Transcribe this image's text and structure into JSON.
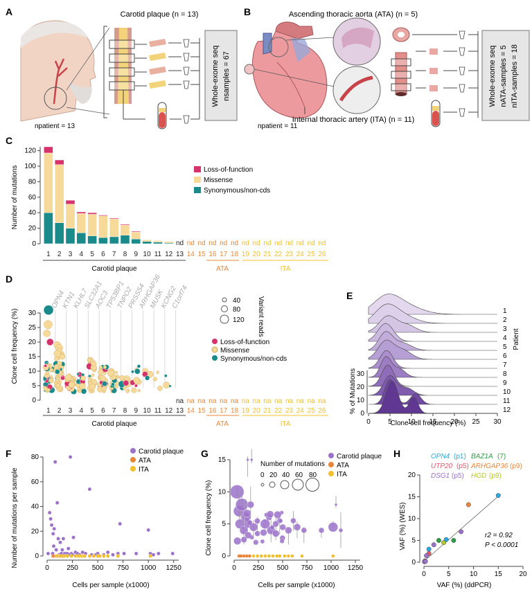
{
  "colors": {
    "lof": "#d6336c",
    "mis": "#f7d99a",
    "syn": "#1a8a8a",
    "carotid": "#9b72c9",
    "ata": "#e8873a",
    "ita": "#f0c02f",
    "grey": "#aaaaaa",
    "orange": "#e8873a",
    "yellow": "#f0c02f"
  },
  "panelA": {
    "label": "A",
    "title": "Carotid plaque (n = 13)",
    "npatient": "npatient = 13",
    "box_l1": "Whole-exome seq",
    "box_l2": "nsamples = 67"
  },
  "panelB": {
    "label": "B",
    "title": "Ascending thoracic aorta (ATA) (n = 5)",
    "subtitle": "Internal thoracic artery (ITA) (n = 11)",
    "npatient": "npatient = 11",
    "box_l1": "Whole-exome seq",
    "box_l2": "nATA-samples = 5",
    "box_l3": "nITA-samples = 18"
  },
  "panelC": {
    "label": "C",
    "ylabel": "Number of mutations",
    "legend": [
      "Loss-of-function",
      "Missense",
      "Synonymous/non-cds"
    ],
    "groups": [
      "Carotid plaque",
      "ATA",
      "ITA"
    ],
    "nd": "nd"
  },
  "panelD": {
    "label": "D",
    "ylabel": "Clone cell frequency (%)",
    "genes": [
      "OPN4",
      "KTN1",
      "KLHL7",
      "SLC32A1",
      "AOC3",
      "TP53BP1",
      "TNPO2",
      "PRSS54",
      "ARHGAP36",
      "MUSK",
      "KCNG2",
      "C1orf74"
    ],
    "size_title": "Variant reads",
    "size_vals": [
      "40",
      "80",
      "120"
    ],
    "legend": [
      "Loss-of-function",
      "Missense",
      "Synonymous/non-cds"
    ],
    "na": "na",
    "groups": [
      "Carotid plaque",
      "ATA",
      "ITA"
    ]
  },
  "panelE": {
    "label": "E",
    "xlabel": "Clone cell frequency (%)",
    "ylabel": "% of Mutations",
    "side": "Patient",
    "patients": [
      "1",
      "2",
      "3",
      "4",
      "5",
      "6",
      "7",
      "8",
      "9",
      "10",
      "11",
      "12"
    ],
    "yticks": [
      "0",
      "10",
      "20",
      "30"
    ],
    "xticks": [
      "0",
      "5",
      "10",
      "15",
      "20",
      "25",
      "30"
    ]
  },
  "panelF": {
    "label": "F",
    "ylabel": "Number of mutations per sample",
    "xlabel": "Cells per sample (x1000)",
    "legend": [
      "Carotid plaque",
      "ATA",
      "ITA"
    ]
  },
  "panelG": {
    "label": "G",
    "ylabel": "Clone cell frequency (%)",
    "xlabel": "Cells per sample (x1000)",
    "size_title": "Number of mutations",
    "size_vals": [
      "0",
      "20",
      "40",
      "60",
      "80"
    ],
    "legend": [
      "Carotid plaque",
      "ATA",
      "ITA"
    ]
  },
  "panelH": {
    "label": "H",
    "ylabel": "VAF (%) (WES)",
    "xlabel": "VAF (%) (ddPCR)",
    "stat1": "r2 = 0.92",
    "stat2": "P < 0.0001",
    "legend": [
      {
        "gene": "OPN4",
        "p": "(p1)",
        "color": "#29a9e0"
      },
      {
        "gene": "BAZ1A",
        "p": "(7)",
        "color": "#2e9e44"
      },
      {
        "gene": "UTP20",
        "p": "(p5)",
        "color": "#e05a6a"
      },
      {
        "gene": "ARHGAP36",
        "p": "(p9)",
        "color": "#e8873a"
      },
      {
        "gene": "DSG1",
        "p": "(p5)",
        "color": "#9b72c9"
      },
      {
        "gene": "HGD",
        "p": "(p9)",
        "color": "#b5c42b"
      }
    ]
  },
  "chart_data": [
    {
      "panel": "C",
      "type": "bar",
      "stacked": true,
      "categories": [
        "1",
        "2",
        "3",
        "4",
        "5",
        "6",
        "7",
        "8",
        "9",
        "10",
        "11",
        "12",
        "13",
        "14",
        "15",
        "16",
        "17",
        "18",
        "19",
        "20",
        "21",
        "22",
        "23",
        "24",
        "25",
        "26"
      ],
      "series": [
        {
          "name": "Synonymous/non-cds",
          "values": [
            40,
            27,
            20,
            14,
            10,
            8,
            9,
            11,
            6,
            3,
            2,
            1,
            null,
            null,
            null,
            null,
            null,
            null,
            null,
            null,
            null,
            null,
            null,
            null,
            null,
            null
          ]
        },
        {
          "name": "Missense",
          "values": [
            77,
            75,
            31,
            25,
            28,
            28,
            23,
            13,
            9,
            2,
            2,
            2,
            null,
            null,
            null,
            null,
            null,
            null,
            null,
            null,
            null,
            null,
            null,
            null,
            null,
            null
          ]
        },
        {
          "name": "Loss-of-function",
          "values": [
            8,
            6,
            5,
            2,
            2,
            1,
            1,
            1,
            1,
            0,
            0,
            0,
            null,
            null,
            null,
            null,
            null,
            null,
            null,
            null,
            null,
            null,
            null,
            null,
            null,
            null
          ]
        }
      ],
      "ylim": [
        0,
        125
      ],
      "yticks": [
        0,
        20,
        40,
        60,
        80,
        100,
        120
      ],
      "nd": [
        "13",
        "14",
        "15",
        "16",
        "17",
        "18",
        "19",
        "20",
        "21",
        "22",
        "23",
        "24",
        "25",
        "26"
      ]
    },
    {
      "panel": "F",
      "type": "scatter",
      "xlim": [
        0,
        1300
      ],
      "ylim": [
        0,
        80
      ],
      "xticks": [
        0,
        250,
        500,
        750,
        1000,
        1250
      ],
      "yticks": [
        0,
        20,
        40,
        60,
        80
      ],
      "series": [
        {
          "name": "Carotid plaque",
          "x": [
            10,
            25,
            35,
            45,
            55,
            60,
            65,
            70,
            80,
            90,
            100,
            110,
            120,
            130,
            140,
            150,
            160,
            170,
            180,
            200,
            210,
            220,
            230,
            240,
            250,
            260,
            280,
            300,
            320,
            350,
            380,
            420,
            440,
            480,
            500,
            560,
            600,
            650,
            700,
            720,
            760,
            880,
            1000,
            1020,
            1050,
            1100,
            1240
          ],
          "y": [
            2,
            35,
            30,
            25,
            2,
            18,
            8,
            22,
            76,
            5,
            43,
            14,
            1,
            11,
            2,
            5,
            14,
            2,
            2,
            2,
            6,
            1,
            80,
            2,
            1,
            15,
            3,
            2,
            1,
            3,
            2,
            54,
            1,
            1,
            2,
            1,
            3,
            1,
            2,
            26,
            2,
            2,
            21,
            2,
            1,
            2,
            2
          ]
        },
        {
          "name": "ATA",
          "x": [
            60,
            90,
            100,
            120,
            150
          ],
          "y": [
            0,
            0,
            0,
            0,
            0
          ]
        },
        {
          "name": "ITA",
          "x": [
            100,
            130,
            170,
            200,
            240,
            280,
            310,
            340,
            360,
            370,
            420,
            460,
            500,
            520,
            560,
            600,
            700,
            1020
          ],
          "y": [
            0,
            0,
            0,
            0,
            0,
            0,
            0,
            0,
            0,
            0,
            0,
            0,
            0,
            0,
            0,
            0,
            0,
            0
          ]
        }
      ]
    },
    {
      "panel": "G",
      "type": "scatter",
      "xlim": [
        0,
        1300
      ],
      "ylim": [
        0,
        15
      ],
      "xticks": [
        0,
        250,
        500,
        750,
        1000,
        1250
      ],
      "yticks": [
        0,
        5,
        10,
        15
      ]
    },
    {
      "panel": "H",
      "type": "scatter",
      "xlim": [
        0,
        20
      ],
      "ylim": [
        0,
        20
      ],
      "xticks": [
        0,
        5,
        10,
        15,
        20
      ],
      "yticks": [
        0,
        5,
        10,
        15,
        20
      ],
      "x": [
        15,
        9,
        7.5,
        6,
        4.5,
        4,
        3,
        2,
        1,
        1,
        0.5,
        0.2,
        0.1,
        0.3
      ],
      "y": [
        15.3,
        13.2,
        7,
        5,
        5.2,
        4.5,
        5,
        4,
        3,
        2,
        1.5,
        0.3,
        0.1,
        0.2
      ]
    }
  ]
}
